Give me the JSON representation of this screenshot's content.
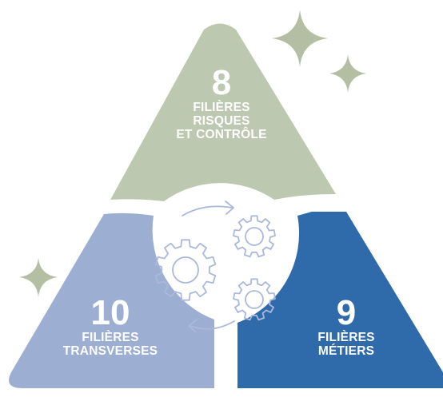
{
  "segments": {
    "top": {
      "number": "8",
      "lines": [
        "FILIÈRES",
        "RISQUES",
        "ET CONTRÔLE"
      ],
      "color": "#bdc8b0"
    },
    "left": {
      "number": "10",
      "lines": [
        "FILIÈRES",
        "TRANSVERSES"
      ],
      "color": "#9daed3"
    },
    "right": {
      "number": "9",
      "lines": [
        "FILIÈRES",
        "MÉTIERS"
      ],
      "color": "#2f6aab"
    }
  },
  "center": {
    "icon": "gears-cycle-icon",
    "stroke_color": "#aab8db"
  },
  "sparkles": {
    "color": "#b4bea2",
    "icons": [
      "sparkle-large-icon",
      "sparkle-small-icon",
      "sparkle-left-icon"
    ]
  },
  "text_color": "#ffffff"
}
